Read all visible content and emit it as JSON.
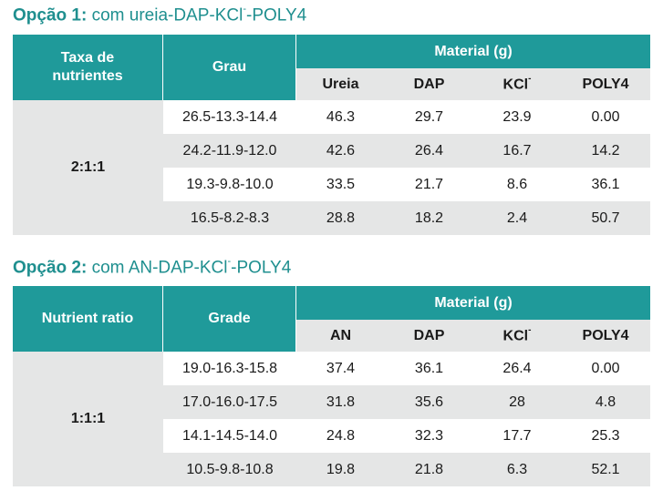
{
  "option1": {
    "title_prefix": "Opção 1:",
    "title_text": " com ureia-DAP-KCl",
    "title_sup": "-",
    "title_suffix": "-POLY4",
    "headers": {
      "ratio": "Taxa de nutrientes",
      "grade": "Grau",
      "material": "Material (g)",
      "col1": "Ureia",
      "col2": "DAP",
      "col3": "KCl",
      "col3_sup": "-",
      "col4": "POLY4"
    },
    "ratio_value": "2:1:1",
    "rows": [
      [
        "26.5-13.3-14.4",
        "46.3",
        "29.7",
        "23.9",
        "0.00"
      ],
      [
        "24.2-11.9-12.0",
        "42.6",
        "26.4",
        "16.7",
        "14.2"
      ],
      [
        "19.3-9.8-10.0",
        "33.5",
        "21.7",
        "8.6",
        "36.1"
      ],
      [
        "16.5-8.2-8.3",
        "28.8",
        "18.2",
        "2.4",
        "50.7"
      ]
    ]
  },
  "option2": {
    "title_prefix": "Opção 2:",
    "title_text": " com AN-DAP-KCl",
    "title_sup": "-",
    "title_suffix": "-POLY4",
    "headers": {
      "ratio": "Nutrient ratio",
      "grade": "Grade",
      "material": "Material (g)",
      "col1": "AN",
      "col2": "DAP",
      "col3": "KCl",
      "col3_sup": "-",
      "col4": "POLY4"
    },
    "ratio_value": "1:1:1",
    "rows": [
      [
        "19.0-16.3-15.8",
        "37.4",
        "36.1",
        "26.4",
        "0.00"
      ],
      [
        "17.0-16.0-17.5",
        "31.8",
        "35.6",
        "28",
        "4.8"
      ],
      [
        "14.1-14.5-14.0",
        "24.8",
        "32.3",
        "17.7",
        "25.3"
      ],
      [
        "10.5-9.8-10.8",
        "19.8",
        "21.8",
        "6.3",
        "52.1"
      ]
    ]
  },
  "colors": {
    "teal_header": "#1f9a9a",
    "heading_text": "#1f8f8f",
    "row_gray": "#e5e6e6"
  }
}
